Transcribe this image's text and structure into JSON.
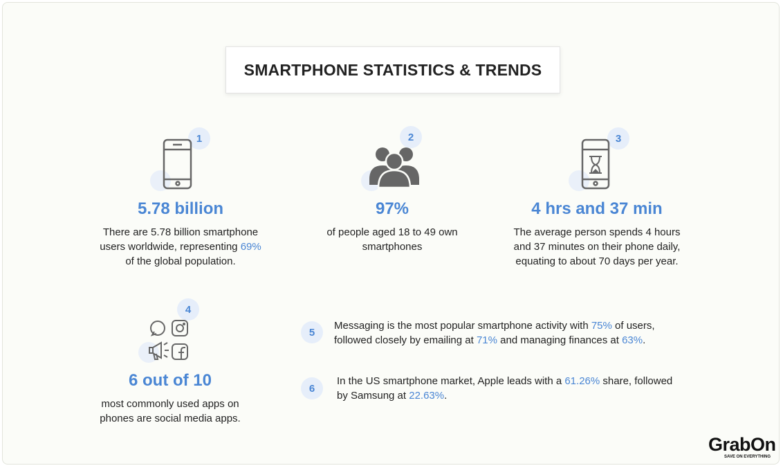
{
  "header": {
    "title": "SMARTPHONE STATISTICS & TRENDS"
  },
  "items": [
    {
      "badge": "1",
      "headline": "5.78 billion",
      "description": [
        "There are 5.78 billion smartphone users worldwide, representing ",
        "69%",
        " of the global population."
      ]
    },
    {
      "badge": "2",
      "headline": "97%",
      "description": [
        "of people aged 18 to 49 own smartphones"
      ]
    },
    {
      "badge": "3",
      "headline": "4 hrs and 37 min",
      "description": [
        "The average person spends 4 hours and 37 minutes on their phone daily, equating to about 70 days per year."
      ]
    },
    {
      "badge": "4",
      "headline": "6 out of 10",
      "description": [
        "most commonly used apps on phones are social media apps."
      ]
    }
  ],
  "facts": [
    {
      "badge": "5",
      "text": [
        "Messaging is the most popular smartphone activity with ",
        "75%",
        " of users, followed closely by emailing at ",
        "71%",
        " and managing finances at ",
        "63%",
        "."
      ]
    },
    {
      "badge": "6",
      "text": [
        "In the US smartphone market, Apple leads with a ",
        "61.26%",
        " share, followed by Samsung at ",
        "22.63%",
        "."
      ]
    }
  ],
  "logo": {
    "name": "GrabOn",
    "tagline": "SAVE ON EVERYTHING"
  }
}
